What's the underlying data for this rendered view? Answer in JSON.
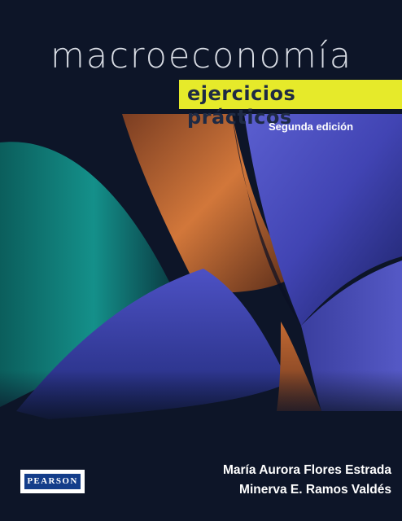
{
  "cover": {
    "title": "macroeconomía",
    "subtitle": "ejercicios prácticos",
    "edition": "Segunda edición",
    "authors": [
      "María Aurora Flores Estrada",
      "Minerva E. Ramos Valdés"
    ],
    "publisher_logo": "PEARSON"
  },
  "colors": {
    "background": "#0d1528",
    "subtitle_band": "#e6ea2a",
    "teal": "#0f7d78",
    "orange": "#c46a32",
    "blue": "#4b4fc2"
  }
}
